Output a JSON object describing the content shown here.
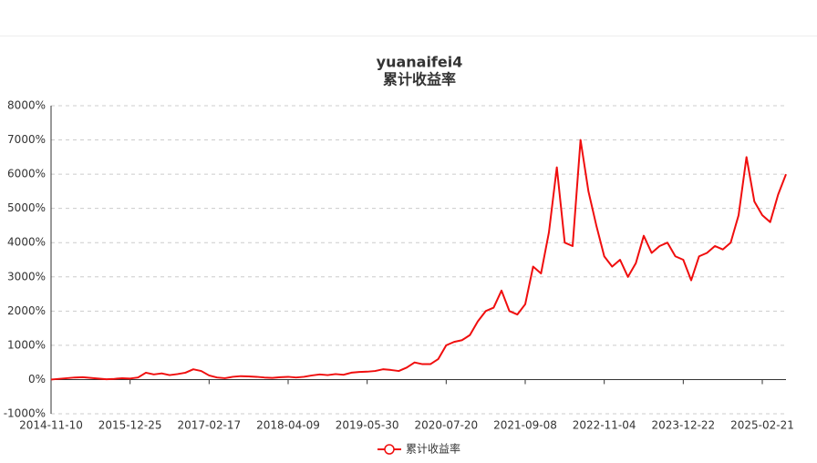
{
  "chart_data": {
    "type": "line",
    "title": "yuanaifei4",
    "subtitle": "累计收益率",
    "x": [
      "2014-11-10",
      null,
      null,
      null,
      null,
      null,
      null,
      null,
      null,
      null,
      "2015-12-25",
      null,
      null,
      null,
      null,
      null,
      null,
      null,
      null,
      null,
      "2017-02-17",
      null,
      null,
      null,
      null,
      null,
      null,
      null,
      null,
      null,
      "2018-04-09",
      null,
      null,
      null,
      null,
      null,
      null,
      null,
      null,
      null,
      "2019-05-30",
      null,
      null,
      null,
      null,
      null,
      null,
      null,
      null,
      null,
      "2020-07-20",
      null,
      null,
      null,
      null,
      null,
      null,
      null,
      null,
      null,
      "2021-09-08",
      null,
      null,
      null,
      null,
      null,
      null,
      null,
      null,
      null,
      "2022-11-04",
      null,
      null,
      null,
      null,
      null,
      null,
      null,
      null,
      null,
      "2023-12-22",
      null,
      null,
      null,
      null,
      null,
      null,
      null,
      null,
      null,
      "2025-02-21",
      null,
      null,
      null
    ],
    "series": [
      {
        "name": "累计收益率",
        "color": "#f00e0e",
        "values": [
          0,
          20,
          40,
          60,
          70,
          50,
          30,
          10,
          20,
          40,
          30,
          60,
          200,
          150,
          180,
          130,
          160,
          200,
          300,
          250,
          120,
          60,
          40,
          80,
          100,
          90,
          80,
          60,
          50,
          70,
          80,
          60,
          80,
          120,
          150,
          130,
          160,
          140,
          200,
          220,
          230,
          250,
          300,
          280,
          250,
          350,
          500,
          450,
          450,
          600,
          1000,
          1100,
          1150,
          1300,
          1700,
          2000,
          2100,
          2600,
          2000,
          1900,
          2200,
          3300,
          3100,
          4300,
          6200,
          4000,
          3900,
          7000,
          5500,
          4500,
          3600,
          3300,
          3500,
          3000,
          3400,
          4200,
          3700,
          3900,
          4000,
          3600,
          3500,
          2900,
          3600,
          3700,
          3900,
          3800,
          4000,
          4800,
          6500,
          5200,
          4800,
          4600,
          5400,
          6000
        ]
      }
    ],
    "ylim": [
      -1000,
      8000
    ],
    "yticks": [
      {
        "value": -1000,
        "label": "-1000%"
      },
      {
        "value": 0,
        "label": "0%"
      },
      {
        "value": 1000,
        "label": "1000%"
      },
      {
        "value": 2000,
        "label": "2000%"
      },
      {
        "value": 3000,
        "label": "3000%"
      },
      {
        "value": 4000,
        "label": "4000%"
      },
      {
        "value": 5000,
        "label": "5000%"
      },
      {
        "value": 6000,
        "label": "6000%"
      },
      {
        "value": 7000,
        "label": "7000%"
      },
      {
        "value": 8000,
        "label": "8000%"
      }
    ],
    "grid": true,
    "legend": "bottom"
  }
}
